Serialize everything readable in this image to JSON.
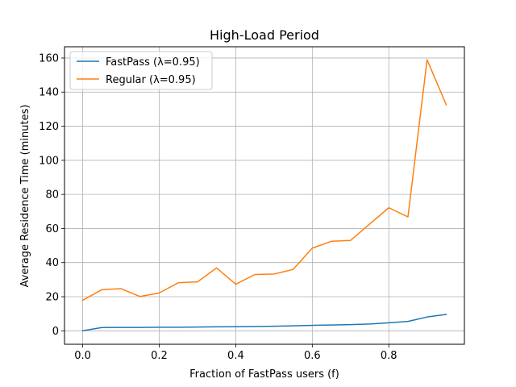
{
  "chart_data": {
    "type": "line",
    "title": "High-Load Period",
    "xlabel": "Fraction of FastPass users (f)",
    "ylabel": "Average Residence Time (minutes)",
    "xlim": [
      -0.0475,
      0.9975
    ],
    "ylim": [
      -7.9,
      166.6
    ],
    "xticks": [
      0.0,
      0.2,
      0.4,
      0.6,
      0.8
    ],
    "xtick_labels": [
      "0.0",
      "0.2",
      "0.4",
      "0.6",
      "0.8"
    ],
    "yticks": [
      0,
      20,
      40,
      60,
      80,
      100,
      120,
      140,
      160
    ],
    "ytick_labels": [
      "0",
      "20",
      "40",
      "60",
      "80",
      "100",
      "120",
      "140",
      "160"
    ],
    "grid": true,
    "legend_position": "top-left",
    "x": [
      0.0,
      0.05,
      0.1,
      0.15,
      0.2,
      0.25,
      0.3,
      0.35,
      0.4,
      0.45,
      0.5,
      0.55,
      0.6,
      0.65,
      0.7,
      0.75,
      0.8,
      0.85,
      0.9,
      0.95
    ],
    "series": [
      {
        "name": "FastPass (λ=0.95)",
        "color": "#1f77b4",
        "values": [
          0.0,
          1.9,
          2.0,
          2.0,
          2.1,
          2.1,
          2.2,
          2.3,
          2.4,
          2.5,
          2.7,
          2.9,
          3.2,
          3.4,
          3.6,
          4.0,
          4.7,
          5.5,
          8.1,
          9.6
        ]
      },
      {
        "name": "Regular (λ=0.95)",
        "color": "#ff7f0e",
        "values": [
          17.9,
          24.1,
          24.7,
          20.1,
          22.2,
          28.2,
          28.7,
          36.9,
          27.3,
          33.0,
          33.3,
          36.0,
          48.5,
          52.5,
          53.0,
          62.6,
          72.2,
          66.8,
          159.0,
          132.6
        ]
      }
    ]
  }
}
